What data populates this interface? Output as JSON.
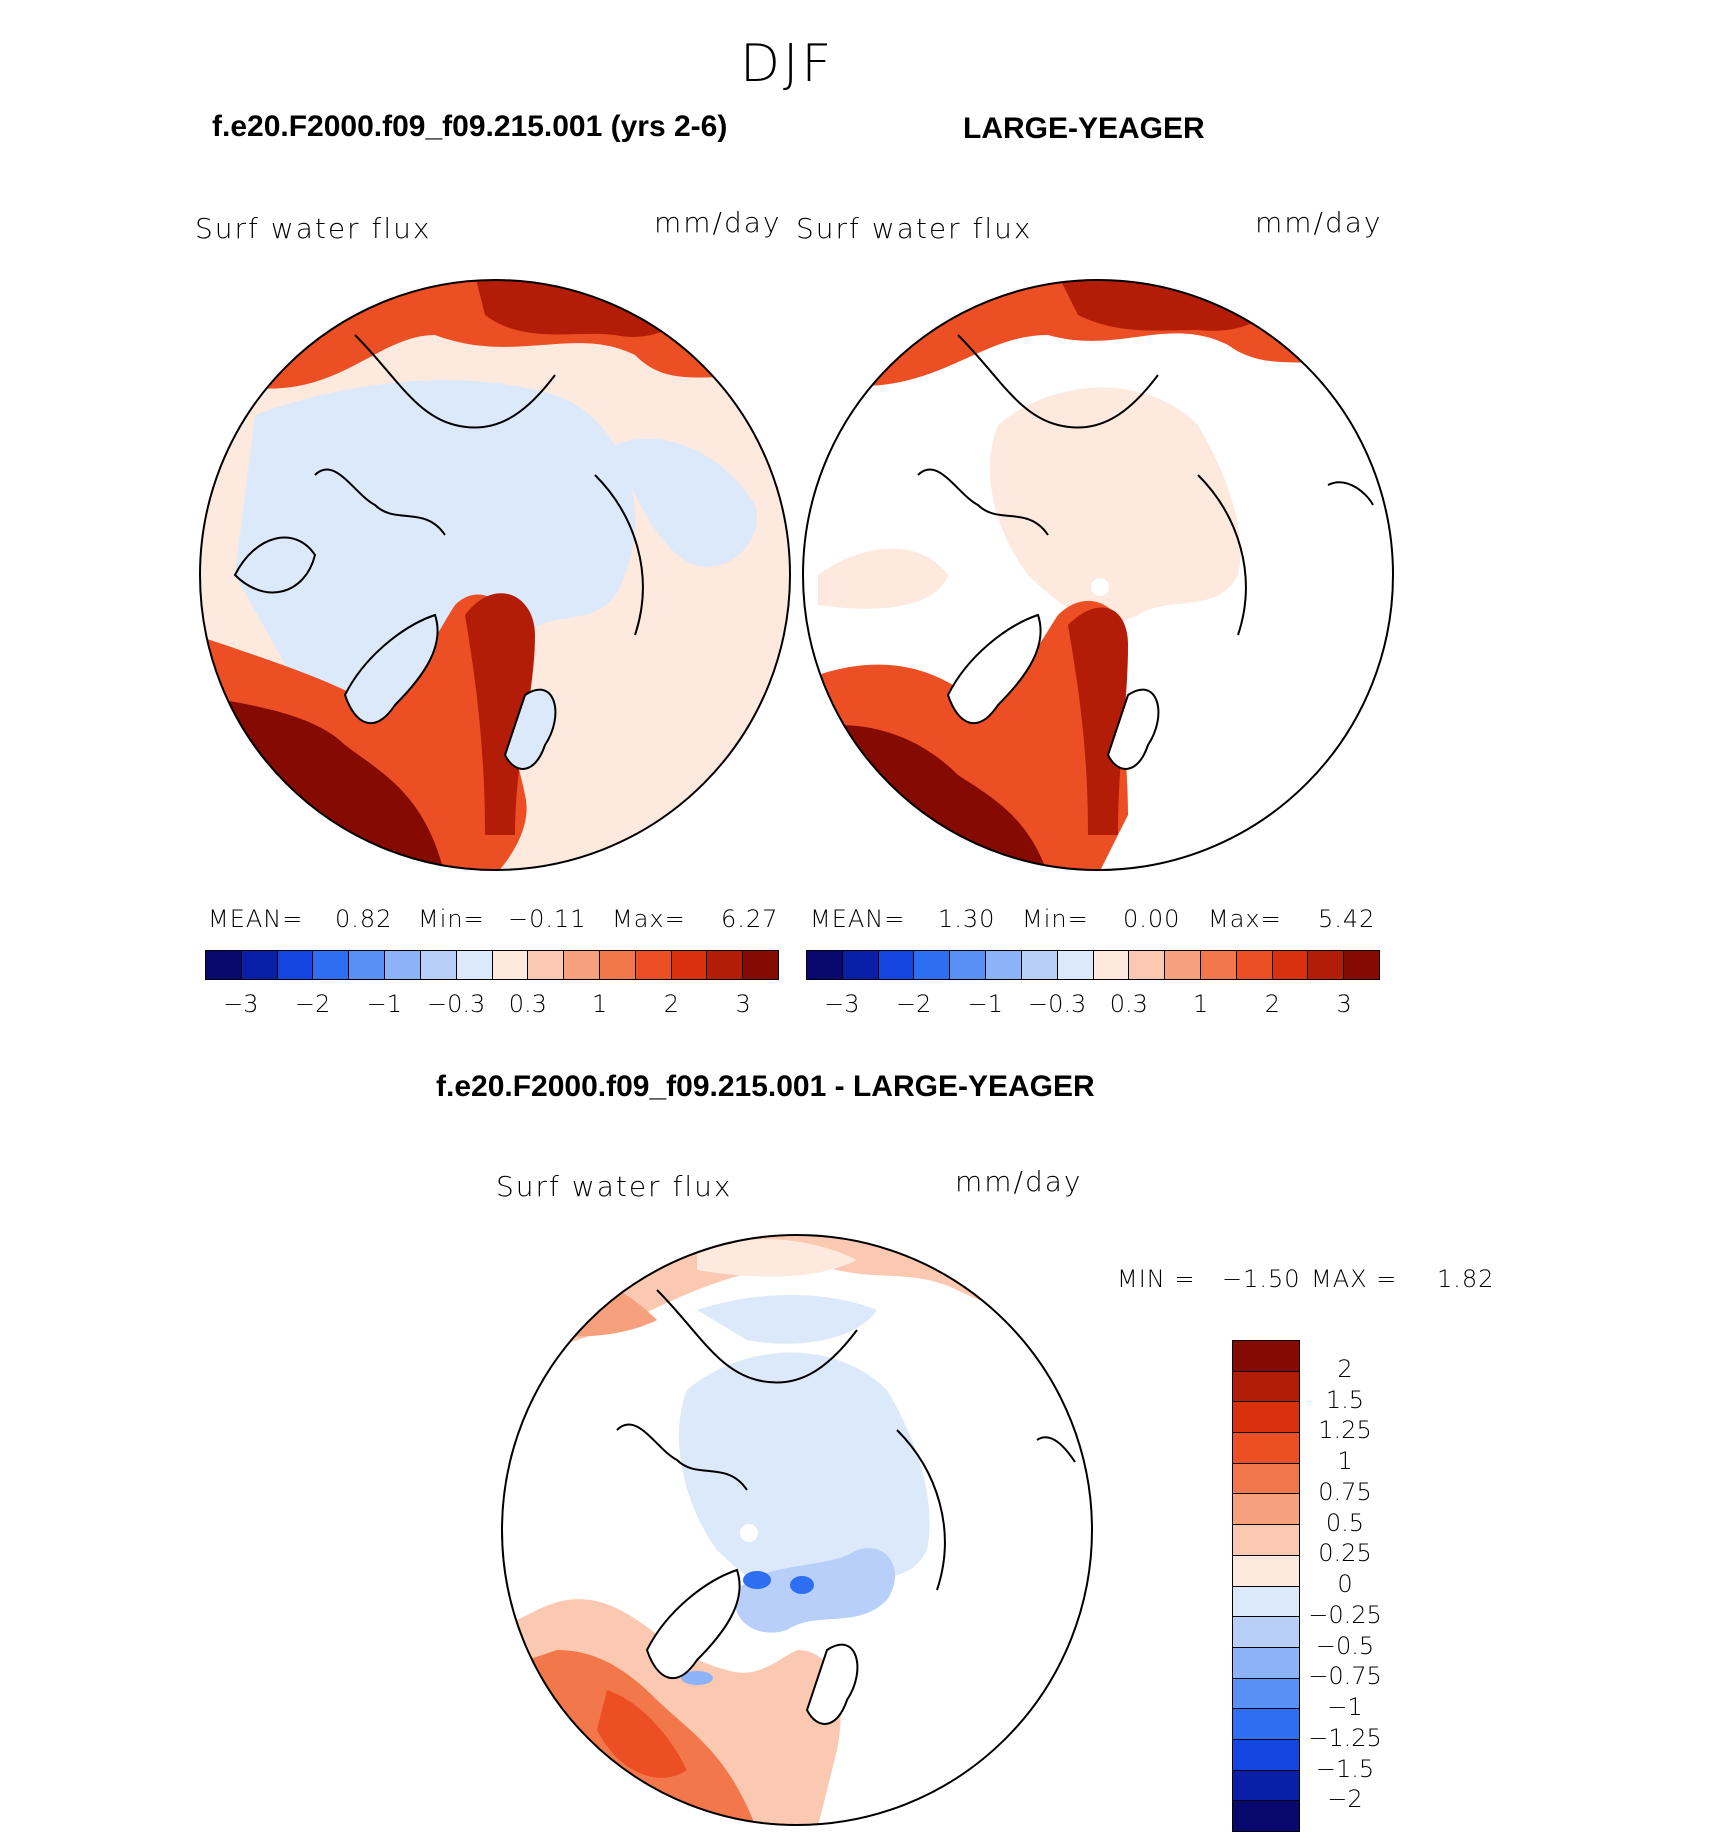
{
  "season": "DJF",
  "panels": {
    "model": {
      "title": "f.e20.F2000.f09_f09.215.001 (yrs 2-6)",
      "var_label": "Surf water flux",
      "units": "mm/day",
      "mean_label": "MEAN=",
      "mean_value": "0.82",
      "min_label": "Min=",
      "min_value": "−0.11",
      "max_label": "Max=",
      "max_value": "6.27"
    },
    "obs": {
      "title": "LARGE-YEAGER",
      "var_label": "Surf water flux",
      "units": "mm/day",
      "mean_label": "MEAN=",
      "mean_value": "1.30",
      "min_label": "Min=",
      "min_value": "0.00",
      "max_label": "Max=",
      "max_value": "5.42"
    },
    "diff": {
      "title": "f.e20.F2000.f09_f09.215.001 - LARGE-YEAGER",
      "var_label": "Surf water flux",
      "units": "mm/day",
      "min_label": "MIN =",
      "min_value": "−1.50",
      "max_label": "MAX =",
      "max_value": "1.82"
    }
  },
  "top_colorbar": {
    "colors": [
      "#08086e",
      "#0a1fa8",
      "#1545e0",
      "#2e6ef2",
      "#5a8ff5",
      "#8cb2f7",
      "#b8d0f9",
      "#dbe9fb",
      "#fde9de",
      "#fbc9b1",
      "#f7a07e",
      "#f2784b",
      "#ec4f24",
      "#d9300e",
      "#b31d08",
      "#850a02"
    ],
    "tick_labels": [
      "−3",
      "−2",
      "−1",
      "−0.3",
      "0.3",
      "1",
      "2",
      "3"
    ]
  },
  "diff_colorbar": {
    "colors": [
      "#850a02",
      "#b31d08",
      "#d9300e",
      "#ec4f24",
      "#f2784b",
      "#f7a07e",
      "#fbc9b1",
      "#fde9de",
      "#dbe9fb",
      "#b8d0f9",
      "#8cb2f7",
      "#5a8ff5",
      "#2e6ef2",
      "#1545e0",
      "#0a1fa8",
      "#08086e"
    ],
    "tick_labels": [
      "2",
      "1.5",
      "1.25",
      "1",
      "0.75",
      "0.5",
      "0.25",
      "0",
      "−0.25",
      "−0.5",
      "−0.75",
      "−1",
      "−1.25",
      "−1.5",
      "−2"
    ]
  }
}
